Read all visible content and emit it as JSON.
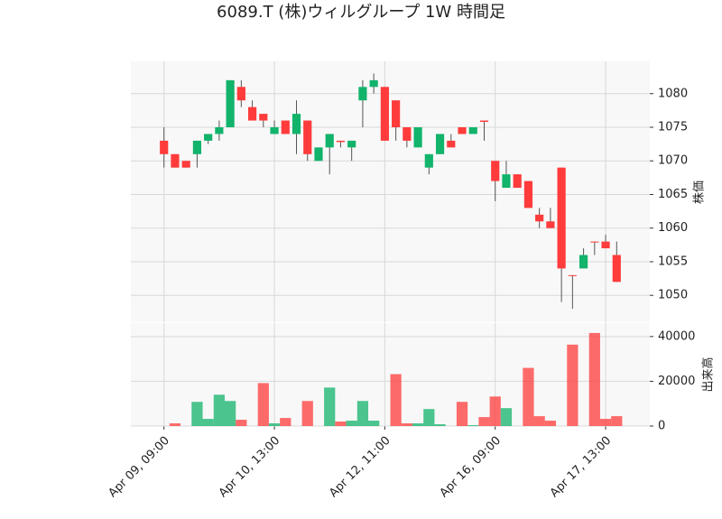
{
  "chart_data": {
    "type": "candlestick",
    "title": "6089.T (株)ウィルグループ 1W 時間足",
    "ylabel": "株価",
    "up_color": "#12b36b",
    "down_color": "#ff3b3b",
    "grid": true,
    "xlim": [
      -3,
      44
    ],
    "xticks": [
      {
        "value": 0,
        "label": "Apr 09, 09:00"
      },
      {
        "value": 10,
        "label": "Apr 10, 13:00"
      },
      {
        "value": 20,
        "label": "Apr 12, 11:00"
      },
      {
        "value": 30,
        "label": "Apr 16, 09:00"
      },
      {
        "value": 40,
        "label": "Apr 17, 13:00"
      }
    ],
    "ylim": [
      1046,
      1084.8
    ],
    "yticks": [
      1050,
      1055,
      1060,
      1065,
      1070,
      1075,
      1080
    ],
    "open": [
      1073,
      1071,
      1070,
      1071,
      1073,
      1074,
      1075,
      1081,
      1078,
      1077,
      1074,
      1076,
      1074,
      1076,
      1070,
      1072,
      1073,
      1072,
      1079,
      1081,
      1081,
      1079,
      1075,
      1072,
      1069,
      1071,
      1073,
      1075,
      1074,
      1076,
      1070,
      1066,
      1068,
      1067,
      1062,
      1061,
      1069,
      1053,
      1054,
      1058,
      1058,
      1056
    ],
    "high": [
      1075,
      1071,
      1070,
      1073,
      1074,
      1076,
      1082,
      1082,
      1079,
      1077,
      1076,
      1076,
      1079,
      1076,
      1072,
      1074,
      1073,
      1073,
      1082,
      1083,
      1081,
      1079,
      1075,
      1075,
      1071,
      1074,
      1074,
      1075,
      1075,
      1076,
      1070,
      1070,
      1068,
      1067,
      1063,
      1063,
      1069,
      1053,
      1057,
      1058,
      1059,
      1058
    ],
    "low": [
      1069,
      1069,
      1069,
      1069,
      1072.5,
      1073,
      1075,
      1078,
      1076,
      1075,
      1074,
      1074,
      1071,
      1070,
      1070,
      1068,
      1072,
      1070,
      1075,
      1080,
      1073,
      1073,
      1072,
      1072,
      1068,
      1071,
      1072,
      1074,
      1074,
      1073,
      1064,
      1066,
      1066,
      1063,
      1060,
      1060,
      1049,
      1048,
      1054,
      1056,
      1057,
      1052
    ],
    "close": [
      1071,
      1069,
      1069,
      1073,
      1074,
      1075,
      1082,
      1079,
      1076,
      1076,
      1075,
      1074,
      1077,
      1071,
      1072,
      1074,
      1072.8,
      1073,
      1081,
      1082,
      1073,
      1075,
      1073,
      1075,
      1071,
      1074,
      1072,
      1074,
      1075,
      1075.8,
      1067,
      1068,
      1066,
      1063,
      1061,
      1060,
      1054,
      1052.9,
      1056,
      1057.9,
      1057,
      1052
    ],
    "volume": {
      "ylabel": "出来高",
      "ylim": [
        0,
        46000
      ],
      "yticks": [
        0,
        20000,
        40000
      ],
      "values": [
        0,
        1200,
        0,
        10800,
        3200,
        14000,
        11200,
        2800,
        0,
        19200,
        1200,
        3600,
        0,
        11200,
        0,
        17200,
        2000,
        2400,
        11200,
        2400,
        0,
        23200,
        1200,
        1200,
        7600,
        800,
        0,
        10800,
        400,
        4000,
        13200,
        8000,
        0,
        26000,
        4400,
        2400,
        0,
        36400,
        0,
        41600,
        3200,
        4400
      ]
    }
  }
}
